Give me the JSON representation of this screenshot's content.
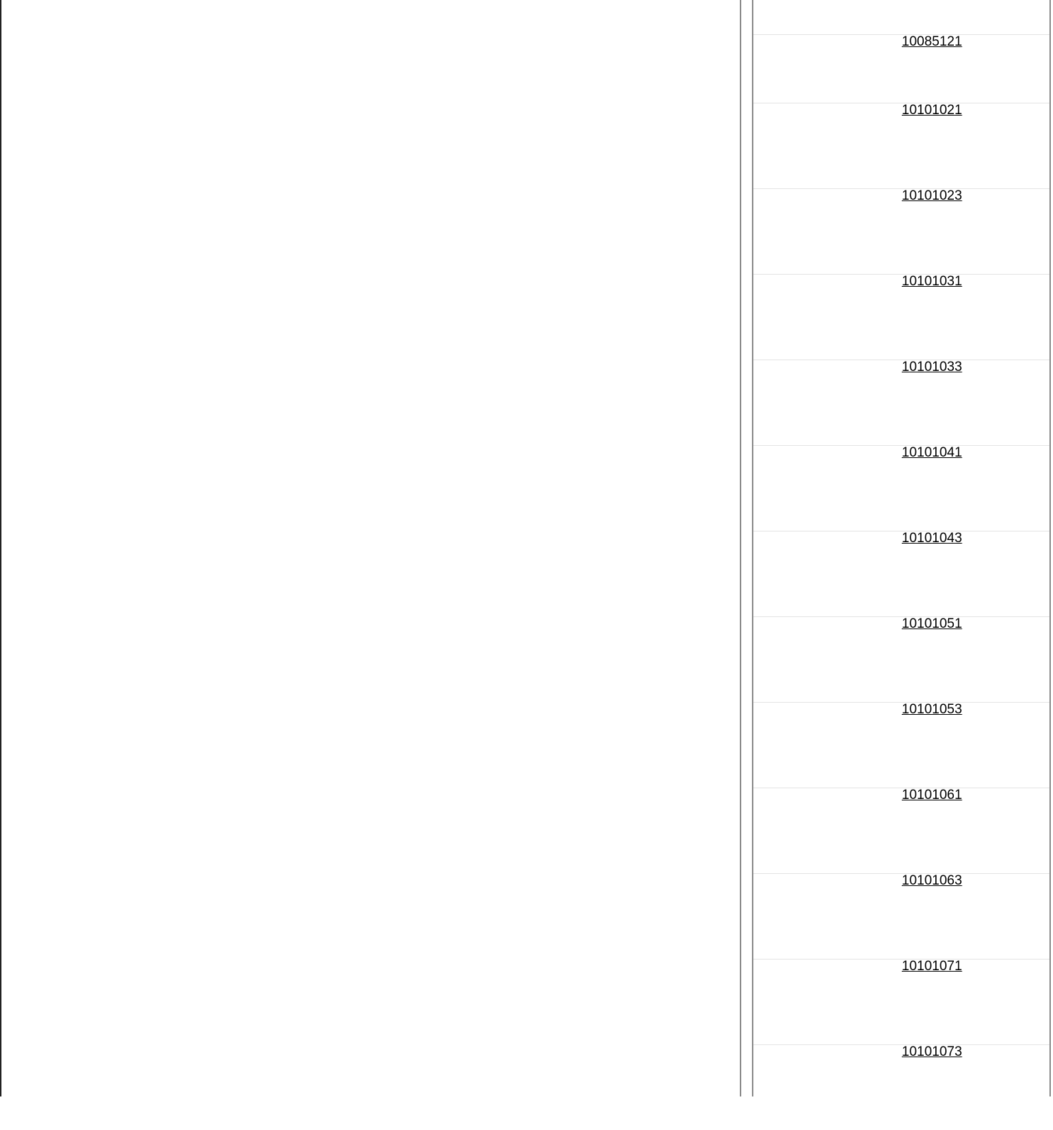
{
  "items": [
    {
      "code": "10085121"
    },
    {
      "code": "10101021"
    },
    {
      "code": "10101023"
    },
    {
      "code": "10101031"
    },
    {
      "code": "10101033"
    },
    {
      "code": "10101041"
    },
    {
      "code": "10101043"
    },
    {
      "code": "10101051"
    },
    {
      "code": "10101053"
    },
    {
      "code": "10101061"
    },
    {
      "code": "10101063"
    },
    {
      "code": "10101071"
    },
    {
      "code": "10101073"
    }
  ]
}
